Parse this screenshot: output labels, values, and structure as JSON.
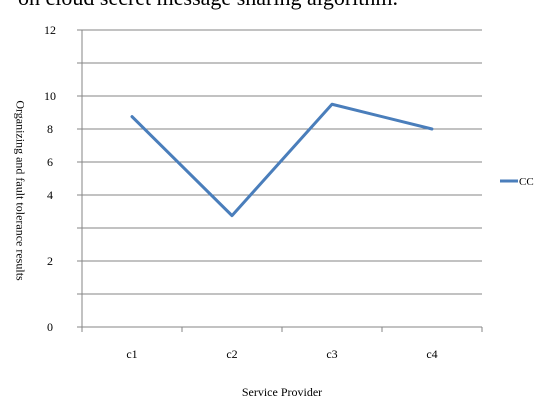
{
  "caption": "on cloud secret message sharing algorithm.",
  "chart_data": {
    "type": "line",
    "title": "",
    "categories": [
      "c1",
      "c2",
      "c3",
      "c4"
    ],
    "series": [
      {
        "name": "CC",
        "values": [
          8.5,
          4.5,
          9.0,
          8.0
        ],
        "color": "#4a7ebb"
      }
    ],
    "y_ticks": [
      0,
      2,
      4,
      6,
      8,
      10,
      12
    ],
    "xlabel": "Service Provider",
    "ylabel": "Organizing and fault tolerance results",
    "ylim": [
      0,
      12
    ],
    "grid": true,
    "legend": "right"
  }
}
